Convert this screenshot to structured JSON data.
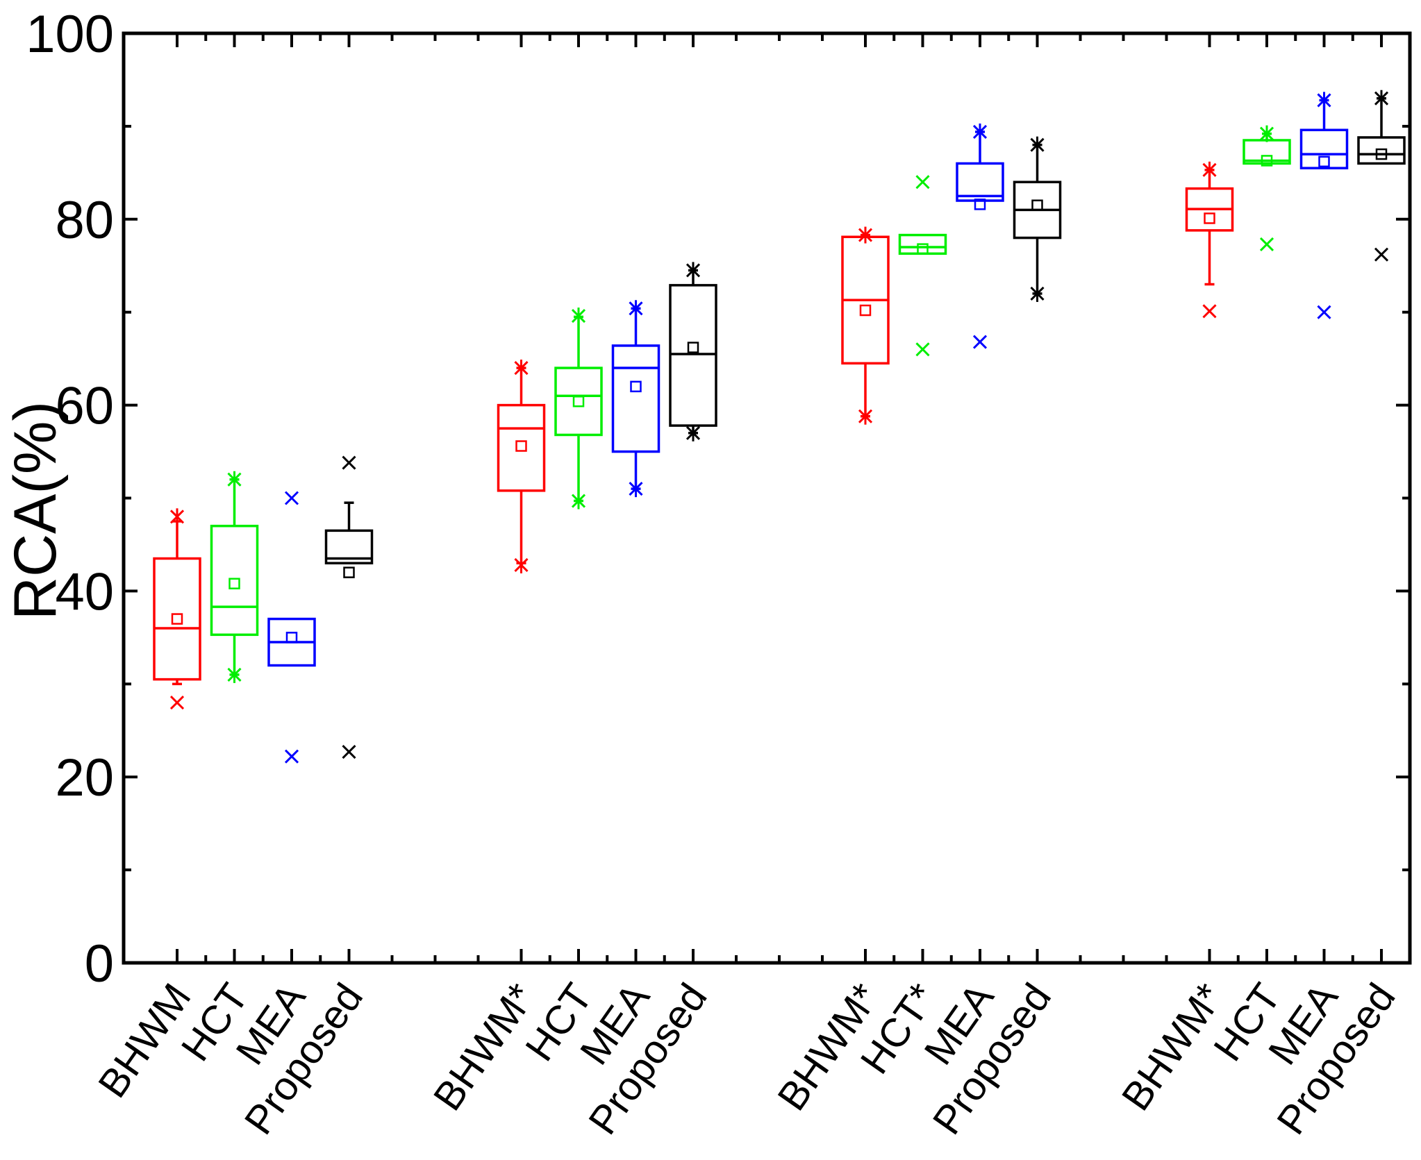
{
  "chart_data": {
    "type": "box",
    "title": "",
    "xlabel": "",
    "ylabel": "RCA(%)",
    "ylim": [
      0,
      100
    ],
    "yticks": [
      0,
      20,
      40,
      60,
      80,
      100
    ],
    "series_colors": {
      "BHWM": "#ff0000",
      "HCT": "#00ee00",
      "MEA": "#0000ff",
      "Proposed": "#000000"
    },
    "groups": [
      {
        "boxes": [
          {
            "label": "BHWM",
            "method": "BHWM",
            "q1": 30.5,
            "median": 36,
            "q3": 43.5,
            "whisker_low": 30,
            "whisker_high": 47.5,
            "mean": 37,
            "outliers": [
              28,
              48
            ]
          },
          {
            "label": "HCT",
            "method": "HCT",
            "q1": 35.3,
            "median": 38.3,
            "q3": 47,
            "whisker_low": 31,
            "whisker_high": 52,
            "mean": 40.8,
            "outliers": [
              31,
              52
            ]
          },
          {
            "label": "MEA",
            "method": "MEA",
            "q1": 32,
            "median": 34.5,
            "q3": 37,
            "whisker_low": 32,
            "whisker_high": 37,
            "mean": 35,
            "outliers": [
              22.2,
              50
            ]
          },
          {
            "label": "Proposed",
            "method": "Proposed",
            "q1": 43,
            "median": 43.5,
            "q3": 46.5,
            "whisker_low": 43,
            "whisker_high": 49.5,
            "mean": 42,
            "outliers": [
              22.7,
              53.8
            ]
          }
        ]
      },
      {
        "boxes": [
          {
            "label": "BHWM*",
            "method": "BHWM",
            "q1": 50.8,
            "median": 57.5,
            "q3": 60,
            "whisker_low": 43,
            "whisker_high": 64,
            "mean": 55.6,
            "outliers": [
              42.8,
              64
            ]
          },
          {
            "label": "HCT",
            "method": "HCT",
            "q1": 56.8,
            "median": 61,
            "q3": 64,
            "whisker_low": 49.7,
            "whisker_high": 69.5,
            "mean": 60.4,
            "outliers": [
              49.7,
              69.6
            ]
          },
          {
            "label": "MEA",
            "method": "MEA",
            "q1": 55,
            "median": 64,
            "q3": 66.4,
            "whisker_low": 51,
            "whisker_high": 70.4,
            "mean": 62,
            "outliers": [
              51,
              70.4
            ]
          },
          {
            "label": "Proposed",
            "method": "Proposed",
            "q1": 57.8,
            "median": 65.5,
            "q3": 72.9,
            "whisker_low": 57,
            "whisker_high": 74.5,
            "mean": 66.2,
            "outliers": [
              57,
              74.5
            ]
          }
        ]
      },
      {
        "boxes": [
          {
            "label": "BHWM*",
            "method": "BHWM",
            "q1": 64.5,
            "median": 71.3,
            "q3": 78.1,
            "whisker_low": 58.8,
            "whisker_high": 78.3,
            "mean": 70.2,
            "outliers": [
              58.8,
              78.3
            ]
          },
          {
            "label": "HCT*",
            "method": "HCT",
            "q1": 76.3,
            "median": 77,
            "q3": 78.3,
            "whisker_low": 76.3,
            "whisker_high": 78.3,
            "mean": 76.8,
            "outliers": [
              66,
              84
            ]
          },
          {
            "label": "MEA",
            "method": "MEA",
            "q1": 82,
            "median": 82.5,
            "q3": 86,
            "whisker_low": 82,
            "whisker_high": 89.4,
            "mean": 81.6,
            "outliers": [
              66.8,
              89.4
            ]
          },
          {
            "label": "Proposed",
            "method": "Proposed",
            "q1": 78,
            "median": 81,
            "q3": 84,
            "whisker_low": 72,
            "whisker_high": 88,
            "mean": 81.5,
            "outliers": [
              72,
              88
            ]
          }
        ]
      },
      {
        "boxes": [
          {
            "label": "BHWM*",
            "method": "BHWM",
            "q1": 78.8,
            "median": 81.1,
            "q3": 83.3,
            "whisker_low": 73,
            "whisker_high": 85.3,
            "mean": 80.1,
            "outliers": [
              70.1,
              85.3
            ]
          },
          {
            "label": "HCT",
            "method": "HCT",
            "q1": 86,
            "median": 86.3,
            "q3": 88.5,
            "whisker_low": 86,
            "whisker_high": 89.2,
            "mean": 86.3,
            "outliers": [
              77.3,
              89.2
            ]
          },
          {
            "label": "MEA",
            "method": "MEA",
            "q1": 85.5,
            "median": 87,
            "q3": 89.6,
            "whisker_low": 85.5,
            "whisker_high": 92.8,
            "mean": 86.2,
            "outliers": [
              70,
              92.8
            ]
          },
          {
            "label": "Proposed",
            "method": "Proposed",
            "q1": 86,
            "median": 87,
            "q3": 88.8,
            "whisker_low": 86,
            "whisker_high": 93,
            "mean": 87,
            "outliers": [
              76.2,
              93
            ]
          }
        ]
      }
    ]
  }
}
